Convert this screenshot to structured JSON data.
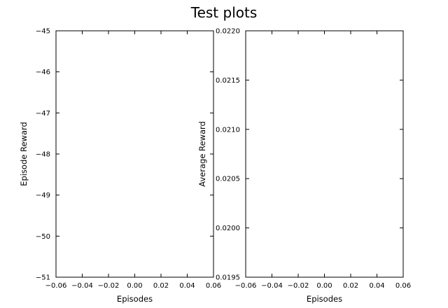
{
  "figure": {
    "title": "Test plots"
  },
  "chart_data": [
    {
      "type": "line",
      "title": "",
      "xlabel": "Episodes",
      "ylabel": "Episode Reward",
      "xlim": [
        -0.06,
        0.06
      ],
      "ylim": [
        -51,
        -45
      ],
      "x_ticks": [
        -0.06,
        -0.04,
        -0.02,
        0.0,
        0.02,
        0.04,
        0.06
      ],
      "x_tick_labels": [
        "−0.06",
        "−0.04",
        "−0.02",
        "0.00",
        "0.02",
        "0.04",
        "0.06"
      ],
      "y_ticks": [
        -51,
        -50,
        -49,
        -48,
        -47,
        -46,
        -45
      ],
      "y_tick_labels": [
        "−51",
        "−50",
        "−49",
        "−48",
        "−47",
        "−46",
        "−45"
      ],
      "series": [],
      "grid": false
    },
    {
      "type": "line",
      "title": "",
      "xlabel": "Episodes",
      "ylabel": "Average Reward",
      "xlim": [
        -0.06,
        0.06
      ],
      "ylim": [
        0.0195,
        0.022
      ],
      "x_ticks": [
        -0.06,
        -0.04,
        -0.02,
        0.0,
        0.02,
        0.04,
        0.06
      ],
      "x_tick_labels": [
        "−0.06",
        "−0.04",
        "−0.02",
        "0.00",
        "0.02",
        "0.04",
        "0.06"
      ],
      "y_ticks": [
        0.0195,
        0.02,
        0.0205,
        0.021,
        0.0215,
        0.022
      ],
      "y_tick_labels": [
        "0.0195",
        "0.0200",
        "0.0205",
        "0.0210",
        "0.0215",
        "0.0220"
      ],
      "series": [],
      "grid": false
    }
  ]
}
